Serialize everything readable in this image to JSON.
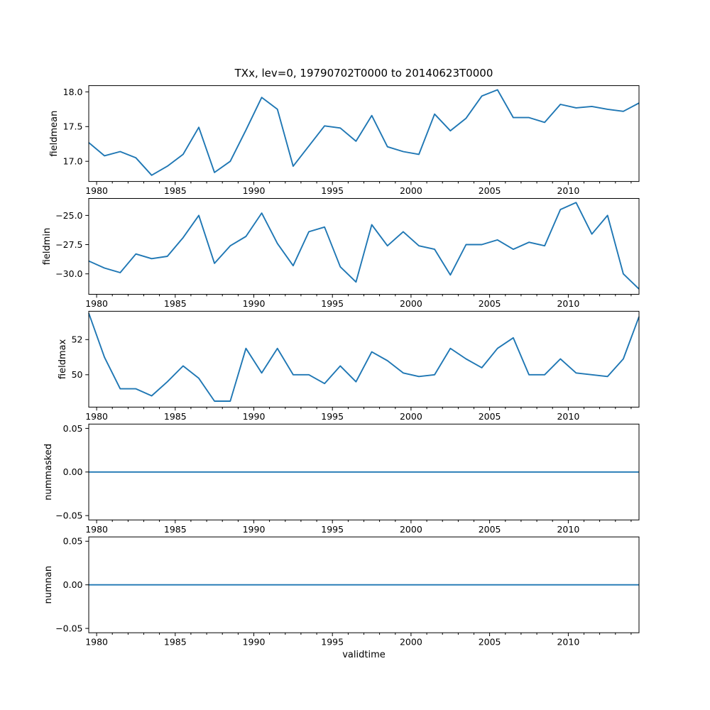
{
  "figure": {
    "background": "#ffffff",
    "text_color": "#000000"
  },
  "chart_data": {
    "type": "line",
    "title": "TXx, lev=0, 19790702T0000 to 20140623T0000",
    "xlabel": "validtime",
    "line_color": "#1f77b4",
    "legend": "none",
    "grid": false,
    "xlim": [
      1979.5,
      2014.5
    ],
    "xticks": [
      1980,
      1985,
      1990,
      1995,
      2000,
      2005,
      2010
    ],
    "xtick_labels": [
      "1980",
      "1985",
      "1990",
      "1995",
      "2000",
      "2005",
      "2010"
    ],
    "x": [
      1979.5,
      1980.5,
      1981.5,
      1982.5,
      1983.5,
      1984.5,
      1985.5,
      1986.5,
      1987.5,
      1988.5,
      1989.5,
      1990.5,
      1991.5,
      1992.5,
      1993.5,
      1994.5,
      1995.5,
      1996.5,
      1997.5,
      1998.5,
      1999.5,
      2000.5,
      2001.5,
      2002.5,
      2003.5,
      2004.5,
      2005.5,
      2006.5,
      2007.5,
      2008.5,
      2009.5,
      2010.5,
      2011.5,
      2012.5,
      2013.5,
      2014.5
    ],
    "subplots": [
      {
        "ylabel": "fieldmean",
        "ylim": [
          16.71,
          18.09
        ],
        "yticks": [
          17.0,
          17.5,
          18.0
        ],
        "ytick_labels": [
          "17.0",
          "17.5",
          "18.0"
        ],
        "values": [
          17.27,
          17.08,
          17.14,
          17.05,
          16.8,
          16.93,
          17.1,
          17.49,
          16.84,
          17.0,
          17.45,
          17.92,
          17.75,
          16.93,
          17.22,
          17.51,
          17.48,
          17.29,
          17.66,
          17.21,
          17.14,
          17.1,
          17.68,
          17.44,
          17.62,
          17.94,
          18.03,
          17.63,
          17.63,
          17.56,
          17.82,
          17.77,
          17.79,
          17.75,
          17.72,
          17.84
        ]
      },
      {
        "ylabel": "fieldmin",
        "ylim": [
          -31.75,
          -23.55
        ],
        "yticks": [
          -30.0,
          -27.5,
          -25.0
        ],
        "ytick_labels": [
          "−30.0",
          "−27.5",
          "−25.0"
        ],
        "values": [
          -28.9,
          -29.5,
          -29.9,
          -28.3,
          -28.7,
          -28.5,
          -26.9,
          -25.0,
          -29.1,
          -27.6,
          -26.8,
          -24.8,
          -27.4,
          -29.3,
          -26.4,
          -26.0,
          -29.4,
          -30.7,
          -25.8,
          -27.6,
          -26.4,
          -27.6,
          -27.9,
          -30.1,
          -27.5,
          -27.5,
          -27.1,
          -27.9,
          -27.3,
          -27.6,
          -24.5,
          -23.9,
          -26.6,
          -25.0,
          -30.0,
          -31.3
        ]
      },
      {
        "ylabel": "fieldmax",
        "ylim": [
          48.16,
          53.61
        ],
        "yticks": [
          50,
          52
        ],
        "ytick_labels": [
          "50",
          "52"
        ],
        "values": [
          53.5,
          51.0,
          49.2,
          49.2,
          48.8,
          49.6,
          50.5,
          49.8,
          48.5,
          48.5,
          51.5,
          50.1,
          51.5,
          50.0,
          50.0,
          49.5,
          50.5,
          49.6,
          51.3,
          50.8,
          50.1,
          49.9,
          50.0,
          51.5,
          50.9,
          50.4,
          51.5,
          52.1,
          50.0,
          50.0,
          50.9,
          50.1,
          50.0,
          49.9,
          50.9,
          53.3
        ]
      },
      {
        "ylabel": "nummasked",
        "ylim": [
          -0.055,
          0.055
        ],
        "yticks": [
          -0.05,
          0.0,
          0.05
        ],
        "ytick_labels": [
          "−0.05",
          "0.00",
          "0.05"
        ],
        "values": [
          0,
          0,
          0,
          0,
          0,
          0,
          0,
          0,
          0,
          0,
          0,
          0,
          0,
          0,
          0,
          0,
          0,
          0,
          0,
          0,
          0,
          0,
          0,
          0,
          0,
          0,
          0,
          0,
          0,
          0,
          0,
          0,
          0,
          0,
          0,
          0
        ]
      },
      {
        "ylabel": "numnan",
        "ylim": [
          -0.055,
          0.055
        ],
        "yticks": [
          -0.05,
          0.0,
          0.05
        ],
        "ytick_labels": [
          "−0.05",
          "0.00",
          "0.05"
        ],
        "values": [
          0,
          0,
          0,
          0,
          0,
          0,
          0,
          0,
          0,
          0,
          0,
          0,
          0,
          0,
          0,
          0,
          0,
          0,
          0,
          0,
          0,
          0,
          0,
          0,
          0,
          0,
          0,
          0,
          0,
          0,
          0,
          0,
          0,
          0,
          0,
          0
        ]
      }
    ]
  }
}
